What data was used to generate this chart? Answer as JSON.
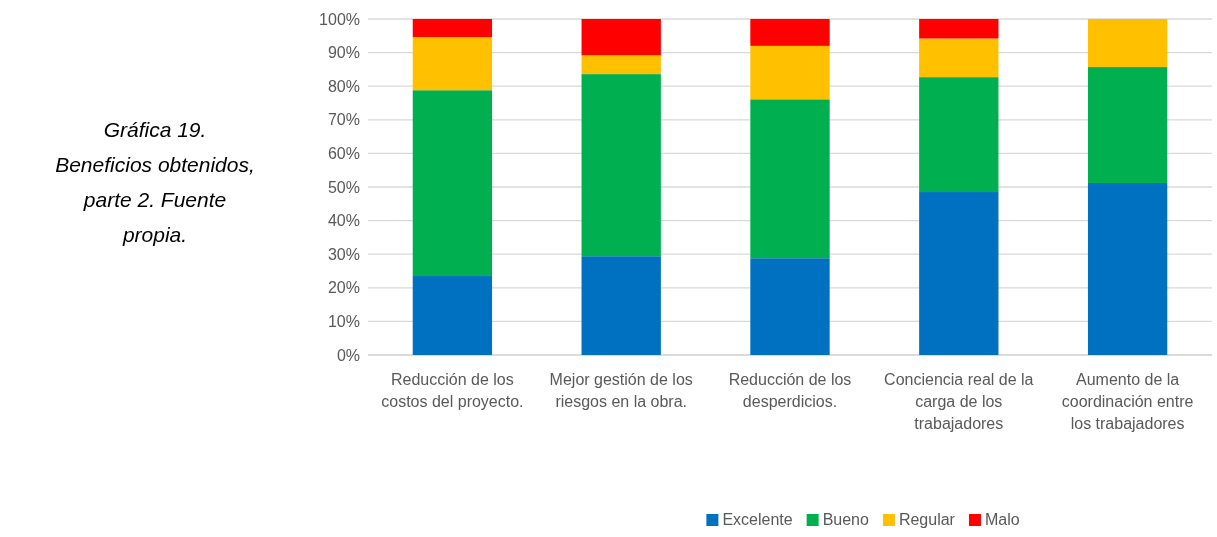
{
  "chart_data": {
    "type": "bar",
    "stacked": true,
    "title": "Gráfica 19. Beneficios obtenidos, parte 2. Fuente propia.",
    "categories": [
      "Reducción de los costos del proyecto.",
      "Mejor gestión de los riesgos en la obra.",
      "Reducción de los desperdicios.",
      "Conciencia real de la carga de los trabajadores",
      "Aumento de la coordinación entre los trabajadores"
    ],
    "series": [
      {
        "name": "Excelente",
        "color": "#0070c0",
        "values": [
          23.5,
          29.4,
          28.8,
          48.5,
          51.2
        ]
      },
      {
        "name": "Bueno",
        "color": "#00b050",
        "values": [
          55.3,
          54.2,
          47.3,
          34.2,
          34.5
        ]
      },
      {
        "name": "Regular",
        "color": "#ffc000",
        "values": [
          15.8,
          5.6,
          15.9,
          11.5,
          14.3
        ]
      },
      {
        "name": "Malo",
        "color": "#ff0000",
        "values": [
          5.4,
          10.8,
          8.0,
          5.8,
          0
        ]
      }
    ],
    "ylim": [
      0,
      100
    ],
    "yticks": [
      {
        "value": 0,
        "label": "0%"
      },
      {
        "value": 10,
        "label": "10%"
      },
      {
        "value": 20,
        "label": "20%"
      },
      {
        "value": 30,
        "label": "30%"
      },
      {
        "value": 40,
        "label": "40%"
      },
      {
        "value": 50,
        "label": "50%"
      },
      {
        "value": 60,
        "label": "60%"
      },
      {
        "value": 70,
        "label": "70%"
      },
      {
        "value": 80,
        "label": "80%"
      },
      {
        "value": 90,
        "label": "90%"
      },
      {
        "value": 100,
        "label": "100%"
      }
    ],
    "grid": "y",
    "legend": "bottom"
  }
}
